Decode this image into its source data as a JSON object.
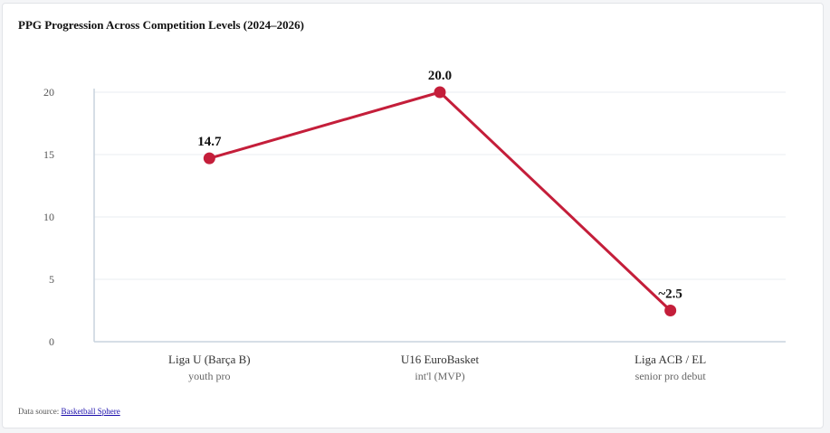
{
  "title": "PPG Progression Across Competition Levels (2024–2026)",
  "source": {
    "prefix": "Data source:",
    "link_text": "Basketball Sphere"
  },
  "colors": {
    "line": "#c41e3a",
    "grid": "#e8edf2",
    "axis": "#c8d3de",
    "tick": "#555555",
    "category": "#333333",
    "sublabel": "#666666",
    "value": "#111111"
  },
  "chart_data": {
    "type": "line",
    "title": "PPG Progression Across Competition Levels (2024–2026)",
    "xlabel": "",
    "ylabel": "",
    "ylim": [
      0,
      20
    ],
    "yticks": [
      0,
      5,
      10,
      15,
      20
    ],
    "grid": true,
    "categories": [
      "Liga U (Barça B)",
      "U16 EuroBasket",
      "Liga ACB / EL"
    ],
    "sublabels": [
      "youth pro",
      "int'l (MVP)",
      "senior pro debut"
    ],
    "series": [
      {
        "values": [
          14.7,
          20.0,
          2.5
        ],
        "labels": [
          "14.7",
          "20.0",
          "~2.5"
        ]
      }
    ]
  }
}
